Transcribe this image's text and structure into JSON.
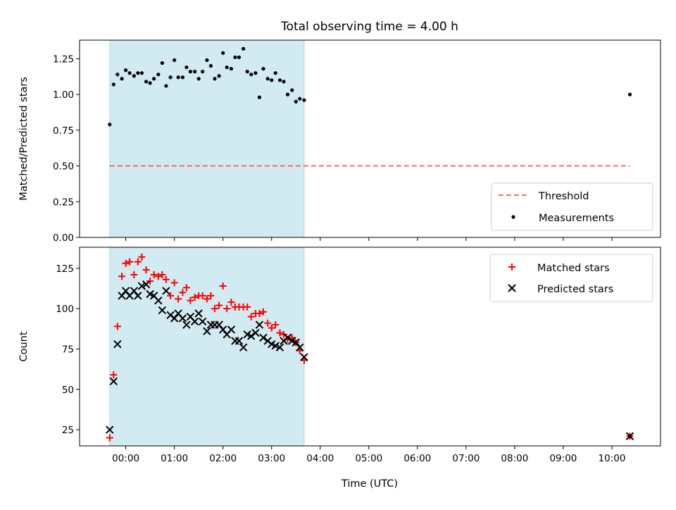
{
  "chart_data": {
    "title": "Total observing time = 4.00 h",
    "xlabel": "Time (UTC)",
    "x_unit": "hours UTC",
    "xlim": [
      -0.95,
      11.0
    ],
    "xticks": [
      {
        "value": 0,
        "label": "00:00"
      },
      {
        "value": 1,
        "label": "01:00"
      },
      {
        "value": 2,
        "label": "02:00"
      },
      {
        "value": 3,
        "label": "03:00"
      },
      {
        "value": 4,
        "label": "04:00"
      },
      {
        "value": 5,
        "label": "05:00"
      },
      {
        "value": 6,
        "label": "06:00"
      },
      {
        "value": 7,
        "label": "07:00"
      },
      {
        "value": 8,
        "label": "08:00"
      },
      {
        "value": 9,
        "label": "09:00"
      },
      {
        "value": 10,
        "label": "10:00"
      }
    ],
    "observing_window": {
      "start": -0.33,
      "end": 3.67,
      "color": "#add8e6"
    },
    "panels": [
      {
        "type": "scatter",
        "ylabel": "Matched/Predicted stars",
        "ylim": [
          0.0,
          1.38
        ],
        "yticks": [
          {
            "value": 0.0,
            "label": "0.00"
          },
          {
            "value": 0.25,
            "label": "0.25"
          },
          {
            "value": 0.5,
            "label": "0.50"
          },
          {
            "value": 0.75,
            "label": "0.75"
          },
          {
            "value": 1.0,
            "label": "1.00"
          },
          {
            "value": 1.25,
            "label": "1.25"
          }
        ],
        "threshold": {
          "name": "Threshold",
          "value": 0.5,
          "x_start": -0.33,
          "x_end": 10.37,
          "color": "#ff6666"
        },
        "series": [
          {
            "name": "Measurements",
            "marker": "dot",
            "color": "#000000",
            "x": [
              -0.33,
              -0.25,
              -0.17,
              -0.08,
              0.0,
              0.08,
              0.17,
              0.25,
              0.33,
              0.42,
              0.5,
              0.58,
              0.67,
              0.75,
              0.83,
              0.92,
              1.0,
              1.08,
              1.17,
              1.25,
              1.33,
              1.42,
              1.5,
              1.58,
              1.67,
              1.75,
              1.83,
              1.92,
              2.0,
              2.08,
              2.17,
              2.25,
              2.33,
              2.42,
              2.5,
              2.58,
              2.67,
              2.75,
              2.83,
              2.92,
              3.0,
              3.08,
              3.17,
              3.25,
              3.33,
              3.42,
              3.5,
              3.58,
              3.67,
              10.37
            ],
            "y": [
              0.79,
              1.07,
              1.14,
              1.11,
              1.17,
              1.15,
              1.13,
              1.15,
              1.15,
              1.09,
              1.08,
              1.11,
              1.14,
              1.22,
              1.06,
              1.12,
              1.24,
              1.12,
              1.12,
              1.19,
              1.16,
              1.16,
              1.11,
              1.16,
              1.24,
              1.2,
              1.11,
              1.13,
              1.29,
              1.19,
              1.18,
              1.26,
              1.26,
              1.32,
              1.16,
              1.14,
              1.15,
              0.98,
              1.18,
              1.11,
              1.1,
              1.15,
              1.1,
              1.09,
              1.0,
              1.03,
              0.95,
              0.97,
              0.96,
              1.0
            ]
          }
        ],
        "legend": {
          "placement": "bottom-right"
        }
      },
      {
        "type": "scatter",
        "ylabel": "Count",
        "ylim": [
          15,
          138
        ],
        "yticks": [
          {
            "value": 25,
            "label": "25"
          },
          {
            "value": 50,
            "label": "50"
          },
          {
            "value": 75,
            "label": "75"
          },
          {
            "value": 100,
            "label": "100"
          },
          {
            "value": 125,
            "label": "125"
          }
        ],
        "series": [
          {
            "name": "Matched stars",
            "marker": "plus",
            "color": "#ff0000",
            "x": [
              -0.33,
              -0.25,
              -0.17,
              -0.08,
              0.0,
              0.08,
              0.17,
              0.25,
              0.33,
              0.42,
              0.5,
              0.58,
              0.67,
              0.75,
              0.83,
              0.92,
              1.0,
              1.08,
              1.17,
              1.25,
              1.33,
              1.42,
              1.5,
              1.58,
              1.67,
              1.75,
              1.83,
              1.92,
              2.0,
              2.08,
              2.17,
              2.25,
              2.33,
              2.42,
              2.5,
              2.58,
              2.67,
              2.75,
              2.83,
              2.92,
              3.0,
              3.08,
              3.17,
              3.25,
              3.33,
              3.42,
              3.5,
              3.58,
              3.67,
              10.37
            ],
            "y": [
              20,
              59,
              89,
              120,
              128,
              129,
              121,
              129,
              132,
              124,
              117,
              121,
              120,
              121,
              118,
              108,
              116,
              106,
              110,
              113,
              105,
              107,
              108,
              108,
              106,
              108,
              100,
              102,
              114,
              100,
              104,
              101,
              101,
              101,
              101,
              95,
              97,
              97,
              98,
              91,
              88,
              90,
              85,
              84,
              81,
              82,
              79,
              74,
              68,
              21
            ]
          },
          {
            "name": "Predicted stars",
            "marker": "x",
            "color": "#000000",
            "x": [
              -0.33,
              -0.25,
              -0.17,
              -0.08,
              0.0,
              0.08,
              0.17,
              0.25,
              0.33,
              0.42,
              0.5,
              0.58,
              0.67,
              0.75,
              0.83,
              0.92,
              1.0,
              1.08,
              1.17,
              1.25,
              1.33,
              1.42,
              1.5,
              1.58,
              1.67,
              1.75,
              1.83,
              1.92,
              2.0,
              2.08,
              2.17,
              2.25,
              2.33,
              2.42,
              2.5,
              2.58,
              2.67,
              2.75,
              2.83,
              2.92,
              3.0,
              3.08,
              3.17,
              3.25,
              3.33,
              3.42,
              3.5,
              3.58,
              3.67,
              10.37
            ],
            "y": [
              25,
              55,
              78,
              108,
              111,
              108,
              111,
              108,
              114,
              115,
              109,
              108,
              105,
              99,
              111,
              96,
              94,
              97,
              94,
              90,
              95,
              92,
              97,
              92,
              86,
              90,
              90,
              90,
              87,
              84,
              87,
              80,
              80,
              76,
              84,
              83,
              85,
              90,
              82,
              80,
              78,
              77,
              76,
              80,
              82,
              80,
              79,
              76,
              70,
              21
            ]
          }
        ],
        "legend": {
          "placement": "top-right"
        }
      }
    ]
  }
}
